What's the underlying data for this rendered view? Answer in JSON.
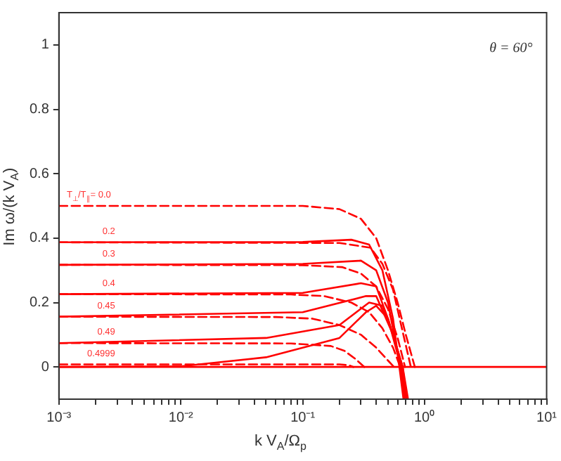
{
  "chart_data": {
    "type": "line",
    "xlabel": "k V$_{A}$/Ω$_{p}$",
    "ylabel": "Im ω/(k V$_{A}$)",
    "log": "x",
    "grid": false,
    "legend": false,
    "xlim": [
      0.001,
      10
    ],
    "ylim": [
      -0.1,
      1.1
    ],
    "xticks": [
      {
        "value": 0.001,
        "label": "10⁻³"
      },
      {
        "value": 0.002,
        "label": null
      },
      {
        "value": 0.003,
        "label": null
      },
      {
        "value": 0.004,
        "label": null
      },
      {
        "value": 0.005,
        "label": null
      },
      {
        "value": 0.006,
        "label": null
      },
      {
        "value": 0.007,
        "label": null
      },
      {
        "value": 0.008,
        "label": null
      },
      {
        "value": 0.009,
        "label": null
      },
      {
        "value": 0.01,
        "label": "10⁻²"
      },
      {
        "value": 0.02,
        "label": null
      },
      {
        "value": 0.03,
        "label": null
      },
      {
        "value": 0.04,
        "label": null
      },
      {
        "value": 0.05,
        "label": null
      },
      {
        "value": 0.06,
        "label": null
      },
      {
        "value": 0.07,
        "label": null
      },
      {
        "value": 0.08,
        "label": null
      },
      {
        "value": 0.09,
        "label": null
      },
      {
        "value": 0.1,
        "label": "10⁻¹"
      },
      {
        "value": 0.2,
        "label": null
      },
      {
        "value": 0.3,
        "label": null
      },
      {
        "value": 0.4,
        "label": null
      },
      {
        "value": 0.5,
        "label": null
      },
      {
        "value": 0.6,
        "label": null
      },
      {
        "value": 0.7,
        "label": null
      },
      {
        "value": 0.8,
        "label": null
      },
      {
        "value": 0.9,
        "label": null
      },
      {
        "value": 1,
        "label": "10⁰"
      },
      {
        "value": 2,
        "label": null
      },
      {
        "value": 3,
        "label": null
      },
      {
        "value": 4,
        "label": null
      },
      {
        "value": 5,
        "label": null
      },
      {
        "value": 6,
        "label": null
      },
      {
        "value": 7,
        "label": null
      },
      {
        "value": 8,
        "label": null
      },
      {
        "value": 9,
        "label": null
      },
      {
        "value": 10,
        "label": "10¹"
      }
    ],
    "yticks": [
      0,
      0.2,
      0.4,
      0.6,
      0.8,
      1
    ],
    "series": [
      {
        "color": "#ff0000",
        "line_style": "solid",
        "x": [
          0.001,
          10
        ],
        "values": [
          0,
          0
        ]
      },
      {
        "name": "T$_{⊥}$/T$_{∥}$= 0.0",
        "color": "#ff0000",
        "line_style": "dashed",
        "x": [
          0.001,
          0.1,
          0.2,
          0.3,
          0.4,
          0.5,
          0.6,
          0.7,
          0.83
        ],
        "values": [
          0.5,
          0.5,
          0.49,
          0.46,
          0.4,
          0.3,
          0.2,
          0.1,
          0
        ]
      },
      {
        "name": "0.2",
        "color": "#ff0000",
        "line_style": "dashed",
        "x": [
          0.001,
          0.2,
          0.36,
          0.45,
          0.55,
          0.65,
          0.77
        ],
        "values": [
          0.387,
          0.385,
          0.37,
          0.32,
          0.24,
          0.12,
          0
        ]
      },
      {
        "name": "0.3",
        "color": "#ff0000",
        "line_style": "dashed",
        "x": [
          0.001,
          0.1,
          0.21,
          0.3,
          0.4,
          0.5,
          0.6,
          0.69
        ],
        "values": [
          0.317,
          0.316,
          0.31,
          0.29,
          0.25,
          0.18,
          0.09,
          0
        ]
      },
      {
        "name": "0.4",
        "color": "#ff0000",
        "line_style": "dashed",
        "x": [
          0.001,
          0.08,
          0.15,
          0.25,
          0.35,
          0.45,
          0.55,
          0.63
        ],
        "values": [
          0.226,
          0.225,
          0.22,
          0.2,
          0.17,
          0.12,
          0.06,
          0
        ]
      },
      {
        "name": "0.45",
        "color": "#ff0000",
        "line_style": "dashed",
        "x": [
          0.001,
          0.06,
          0.12,
          0.2,
          0.3,
          0.4,
          0.5,
          0.56
        ],
        "values": [
          0.156,
          0.155,
          0.15,
          0.13,
          0.1,
          0.06,
          0.02,
          0
        ]
      },
      {
        "name": "0.49",
        "color": "#ff0000",
        "line_style": "dashed",
        "x": [
          0.001,
          0.08,
          0.17,
          0.22,
          0.27,
          0.32
        ],
        "values": [
          0.074,
          0.073,
          0.065,
          0.05,
          0.025,
          0
        ]
      },
      {
        "name": "0.4999",
        "color": "#ff0000",
        "line_style": "dashed",
        "x": [
          0.001,
          0.2,
          0.24,
          0.26
        ],
        "values": [
          0.008,
          0.008,
          0.005,
          0
        ]
      },
      {
        "color": "#ff0000",
        "line_style": "solid",
        "x": [
          0.001,
          0.1,
          0.25,
          0.35,
          0.45,
          0.55,
          0.62,
          0.67
        ],
        "values": [
          0.387,
          0.388,
          0.395,
          0.38,
          0.3,
          0.15,
          0,
          -0.1
        ]
      },
      {
        "color": "#ff0000",
        "line_style": "solid",
        "x": [
          0.001,
          0.1,
          0.3,
          0.4,
          0.5,
          0.63,
          0.68
        ],
        "values": [
          0.317,
          0.32,
          0.33,
          0.3,
          0.2,
          0,
          -0.1
        ]
      },
      {
        "color": "#ff0000",
        "line_style": "solid",
        "x": [
          0.001,
          0.1,
          0.3,
          0.4,
          0.5,
          0.64,
          0.69
        ],
        "values": [
          0.226,
          0.23,
          0.26,
          0.25,
          0.15,
          0,
          -0.1
        ]
      },
      {
        "color": "#ff0000",
        "line_style": "solid",
        "x": [
          0.001,
          0.1,
          0.33,
          0.4,
          0.55,
          0.65,
          0.7
        ],
        "values": [
          0.156,
          0.17,
          0.22,
          0.22,
          0.1,
          0,
          -0.1
        ]
      },
      {
        "color": "#ff0000",
        "line_style": "solid",
        "x": [
          0.001,
          0.05,
          0.2,
          0.35,
          0.45,
          0.55,
          0.66,
          0.71
        ],
        "values": [
          0.074,
          0.09,
          0.13,
          0.2,
          0.19,
          0.1,
          0,
          -0.1
        ]
      },
      {
        "color": "#ff0000",
        "line_style": "solid",
        "x": [
          0.001,
          0.01,
          0.05,
          0.2,
          0.33,
          0.4,
          0.5,
          0.66,
          0.73
        ],
        "values": [
          0,
          0.002,
          0.03,
          0.09,
          0.17,
          0.19,
          0.15,
          0,
          -0.1
        ]
      }
    ],
    "annotations": [
      "θ = 60°"
    ]
  }
}
